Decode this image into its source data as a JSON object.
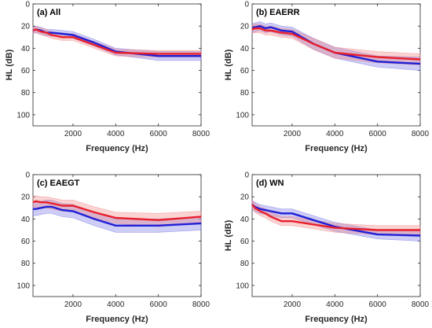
{
  "chart_data": [
    {
      "type": "line",
      "title": "(a) All",
      "xlabel": "Frequency (Hz)",
      "ylabel": "HL (dB)",
      "xlim": [
        125,
        8000
      ],
      "ylim": [
        0,
        110
      ],
      "y_reversed": true,
      "xticks": [
        "2000",
        "4000",
        "6000",
        "8000"
      ],
      "yticks": [
        "0",
        "20",
        "40",
        "60",
        "80",
        "100"
      ],
      "x": [
        125,
        250,
        500,
        750,
        1000,
        1500,
        2000,
        3000,
        4000,
        6000,
        8000
      ],
      "series": [
        {
          "color": "#1f1fd6",
          "band_color": "#7070e6",
          "values": [
            24,
            23,
            24,
            26,
            26,
            27,
            28,
            35,
            43,
            47,
            47
          ],
          "lower": [
            21,
            20,
            21,
            23,
            23,
            24,
            25,
            32,
            40,
            43,
            43
          ],
          "upper": [
            27,
            26,
            27,
            29,
            29,
            30,
            31,
            38,
            46,
            51,
            51
          ]
        },
        {
          "color": "#e8202c",
          "band_color": "#f08080",
          "values": [
            24,
            23,
            25,
            26,
            28,
            30,
            30,
            37,
            44,
            45,
            45
          ],
          "lower": [
            21,
            20,
            22,
            23,
            25,
            27,
            27,
            34,
            41,
            42,
            42
          ],
          "upper": [
            27,
            26,
            28,
            29,
            31,
            33,
            33,
            40,
            47,
            48,
            48
          ]
        }
      ]
    },
    {
      "type": "line",
      "title": "(b) EAERR",
      "xlabel": "Frequency (Hz)",
      "ylabel": "HL (dB)",
      "xlim": [
        125,
        8000
      ],
      "ylim": [
        0,
        110
      ],
      "y_reversed": true,
      "xticks": [
        "2000",
        "4000",
        "6000",
        "8000"
      ],
      "yticks": [
        "0",
        "20",
        "40",
        "60",
        "80",
        "100"
      ],
      "x": [
        125,
        250,
        500,
        750,
        1000,
        1500,
        2000,
        3000,
        4000,
        6000,
        8000
      ],
      "series": [
        {
          "color": "#1f1fd6",
          "band_color": "#7070e6",
          "values": [
            22,
            21,
            20,
            22,
            21,
            24,
            25,
            36,
            44,
            52,
            54
          ],
          "lower": [
            18,
            17,
            16,
            18,
            17,
            20,
            21,
            31,
            39,
            47,
            48
          ],
          "upper": [
            26,
            25,
            24,
            26,
            25,
            28,
            29,
            41,
            49,
            57,
            60
          ]
        },
        {
          "color": "#e8202c",
          "band_color": "#f08080",
          "values": [
            23,
            22,
            22,
            24,
            24,
            26,
            27,
            36,
            44,
            48,
            50
          ],
          "lower": [
            19,
            18,
            18,
            20,
            20,
            22,
            23,
            31,
            39,
            43,
            45
          ],
          "upper": [
            27,
            26,
            26,
            28,
            28,
            30,
            31,
            41,
            49,
            53,
            55
          ]
        }
      ]
    },
    {
      "type": "line",
      "title": "(c) EAEGT",
      "xlabel": "Frequency (Hz)",
      "ylabel": "",
      "xlim": [
        125,
        8000
      ],
      "ylim": [
        0,
        110
      ],
      "y_reversed": true,
      "xticks": [
        "2000",
        "4000",
        "6000",
        "8000"
      ],
      "yticks": [
        "0",
        "20",
        "40",
        "60",
        "80",
        "100"
      ],
      "x": [
        125,
        250,
        500,
        750,
        1000,
        1500,
        2000,
        3000,
        4000,
        6000,
        8000
      ],
      "series": [
        {
          "color": "#1f1fd6",
          "band_color": "#7070e6",
          "values": [
            31,
            31,
            30,
            29,
            29,
            32,
            33,
            40,
            46,
            46,
            44
          ],
          "lower": [
            25,
            25,
            24,
            23,
            23,
            26,
            27,
            34,
            40,
            40,
            38
          ],
          "upper": [
            37,
            37,
            36,
            35,
            35,
            38,
            39,
            46,
            52,
            52,
            50
          ]
        },
        {
          "color": "#e8202c",
          "band_color": "#f08080",
          "values": [
            25,
            24,
            25,
            25,
            26,
            28,
            28,
            34,
            39,
            41,
            38
          ],
          "lower": [
            20,
            19,
            20,
            20,
            21,
            23,
            23,
            29,
            34,
            35,
            33
          ],
          "upper": [
            30,
            29,
            30,
            30,
            31,
            33,
            33,
            39,
            44,
            47,
            43
          ]
        }
      ]
    },
    {
      "type": "line",
      "title": "(d) WN",
      "xlabel": "Frequency (Hz)",
      "ylabel": "HL (dB)",
      "xlim": [
        125,
        8000
      ],
      "ylim": [
        0,
        110
      ],
      "y_reversed": true,
      "xticks": [
        "2000",
        "4000",
        "6000",
        "8000"
      ],
      "yticks": [
        "0",
        "20",
        "40",
        "60",
        "80",
        "100"
      ],
      "x": [
        125,
        250,
        500,
        750,
        1000,
        1500,
        2000,
        3000,
        4000,
        6000,
        8000
      ],
      "series": [
        {
          "color": "#1f1fd6",
          "band_color": "#7070e6",
          "values": [
            27,
            29,
            31,
            32,
            33,
            35,
            35,
            41,
            47,
            54,
            55
          ],
          "lower": [
            23,
            25,
            27,
            28,
            29,
            31,
            31,
            37,
            43,
            50,
            50
          ],
          "upper": [
            31,
            33,
            35,
            36,
            37,
            39,
            39,
            45,
            51,
            58,
            60
          ]
        },
        {
          "color": "#e8202c",
          "band_color": "#f08080",
          "values": [
            27,
            30,
            33,
            35,
            38,
            42,
            42,
            45,
            48,
            50,
            50
          ],
          "lower": [
            23,
            26,
            29,
            31,
            34,
            38,
            38,
            41,
            44,
            46,
            46
          ],
          "upper": [
            31,
            34,
            37,
            39,
            42,
            46,
            46,
            49,
            52,
            54,
            54
          ]
        }
      ]
    }
  ]
}
